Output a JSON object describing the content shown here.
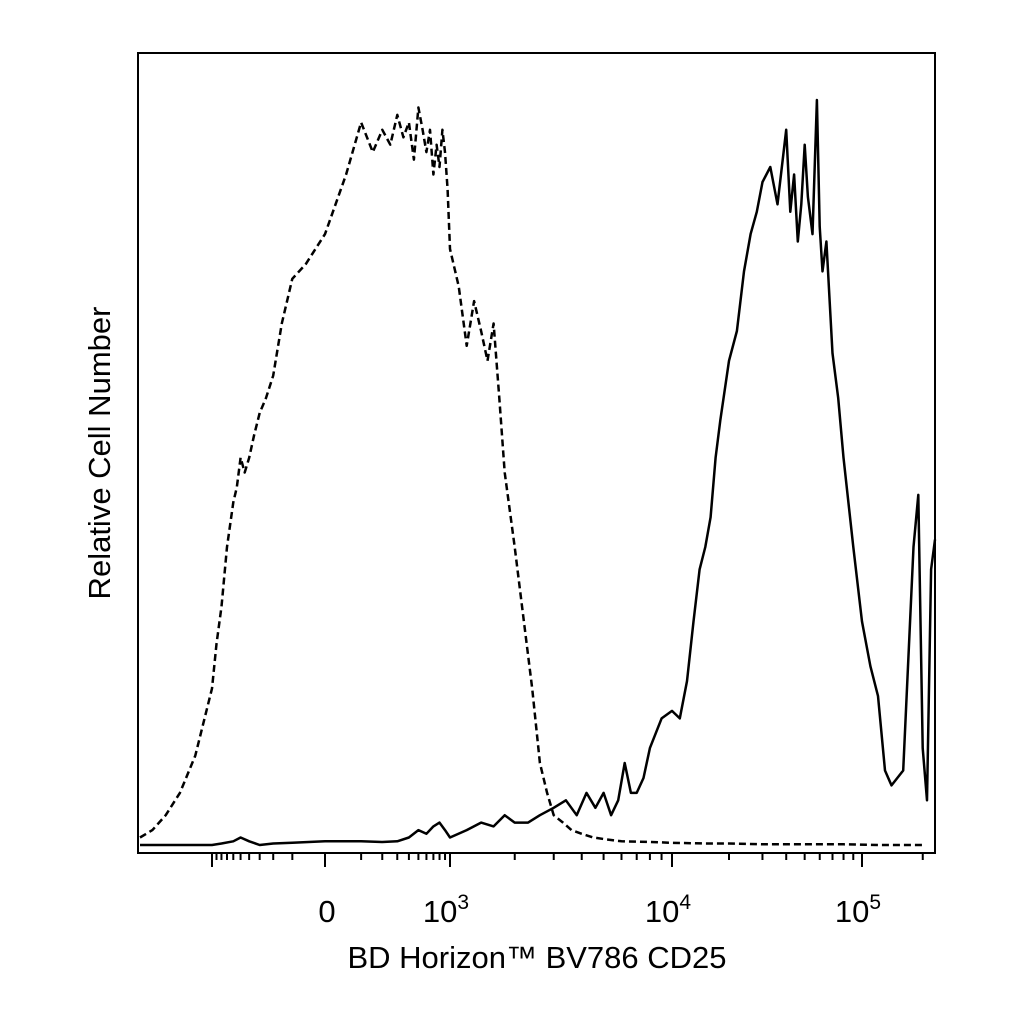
{
  "chart_data": {
    "type": "line",
    "xlabel": "BD Horizon™ BV786 CD25",
    "ylabel": "Relative Cell Number",
    "x_scale": "biexponential",
    "xlim": [
      -1500,
      230000
    ],
    "ylim": [
      0,
      1
    ],
    "grid": false,
    "x_tick_labels": [
      {
        "value": 0,
        "base": "0",
        "exp": ""
      },
      {
        "value": 1000,
        "base": "10",
        "exp": "3"
      },
      {
        "value": 10000,
        "base": "10",
        "exp": "4"
      },
      {
        "value": 100000,
        "base": "10",
        "exp": "5"
      }
    ],
    "series": [
      {
        "style": "dashed",
        "x": [
          -1500,
          -1400,
          -1300,
          -1200,
          -1100,
          -1000,
          -900,
          -800,
          -700,
          -600,
          -550,
          -500,
          -450,
          -400,
          -350,
          -300,
          -250,
          -200,
          -150,
          -100,
          -50,
          0,
          50,
          100,
          150,
          200,
          250,
          300,
          350,
          400,
          450,
          500,
          550,
          600,
          650,
          700,
          750,
          800,
          850,
          900,
          950,
          1000,
          1100,
          1200,
          1300,
          1400,
          1500,
          1600,
          1700,
          1800,
          2000,
          2200,
          2400,
          2600,
          2800,
          3000,
          3300,
          3600,
          4000,
          4500,
          5000,
          6000,
          8000,
          10000,
          15000,
          20000,
          30000,
          50000,
          80000,
          120000,
          200000
        ],
        "y": [
          0.01,
          0.02,
          0.04,
          0.07,
          0.12,
          0.21,
          0.27,
          0.32,
          0.4,
          0.46,
          0.48,
          0.52,
          0.5,
          0.52,
          0.55,
          0.58,
          0.6,
          0.63,
          0.7,
          0.76,
          0.78,
          0.82,
          0.9,
          0.97,
          0.93,
          0.96,
          0.94,
          0.98,
          0.95,
          0.97,
          0.92,
          0.99,
          0.96,
          0.93,
          0.96,
          0.9,
          0.94,
          0.91,
          0.96,
          0.93,
          0.88,
          0.8,
          0.75,
          0.67,
          0.73,
          0.69,
          0.65,
          0.7,
          0.6,
          0.5,
          0.4,
          0.3,
          0.21,
          0.11,
          0.07,
          0.04,
          0.03,
          0.02,
          0.015,
          0.01,
          0.008,
          0.005,
          0.004,
          0.003,
          0.002,
          0.002,
          0.001,
          0.001,
          0.001,
          0.0,
          0.0
        ]
      },
      {
        "style": "solid",
        "x": [
          -1500,
          -1000,
          -800,
          -600,
          -500,
          -400,
          -300,
          -200,
          -100,
          0,
          100,
          200,
          300,
          400,
          500,
          600,
          700,
          800,
          900,
          1000,
          1200,
          1400,
          1600,
          1800,
          2000,
          2300,
          2600,
          3000,
          3400,
          3800,
          4200,
          4600,
          5000,
          5400,
          5800,
          6200,
          6600,
          7000,
          7500,
          8000,
          9000,
          10000,
          11000,
          12000,
          13000,
          14000,
          15000,
          16000,
          17000,
          18000,
          20000,
          22000,
          24000,
          26000,
          28000,
          30000,
          33000,
          36000,
          40000,
          42000,
          44000,
          46000,
          48000,
          50000,
          52000,
          55000,
          58000,
          60000,
          62000,
          65000,
          70000,
          75000,
          80000,
          90000,
          100000,
          110000,
          120000,
          130000,
          140000,
          160000,
          180000,
          190000,
          200000,
          210000,
          220000,
          230000
        ],
        "y": [
          0.0,
          0.0,
          0.002,
          0.005,
          0.01,
          0.005,
          0.0,
          0.002,
          0.003,
          0.005,
          0.005,
          0.004,
          0.005,
          0.01,
          0.02,
          0.015,
          0.025,
          0.03,
          0.02,
          0.01,
          0.02,
          0.03,
          0.025,
          0.04,
          0.03,
          0.03,
          0.04,
          0.05,
          0.06,
          0.04,
          0.07,
          0.05,
          0.07,
          0.04,
          0.06,
          0.11,
          0.07,
          0.07,
          0.09,
          0.13,
          0.17,
          0.18,
          0.17,
          0.22,
          0.3,
          0.37,
          0.4,
          0.44,
          0.52,
          0.57,
          0.65,
          0.69,
          0.77,
          0.82,
          0.85,
          0.89,
          0.91,
          0.86,
          0.96,
          0.85,
          0.9,
          0.81,
          0.86,
          0.94,
          0.87,
          0.82,
          1.0,
          0.83,
          0.77,
          0.81,
          0.66,
          0.6,
          0.52,
          0.4,
          0.3,
          0.24,
          0.2,
          0.1,
          0.08,
          0.1,
          0.4,
          0.47,
          0.13,
          0.06,
          0.37,
          0.41
        ]
      }
    ]
  }
}
